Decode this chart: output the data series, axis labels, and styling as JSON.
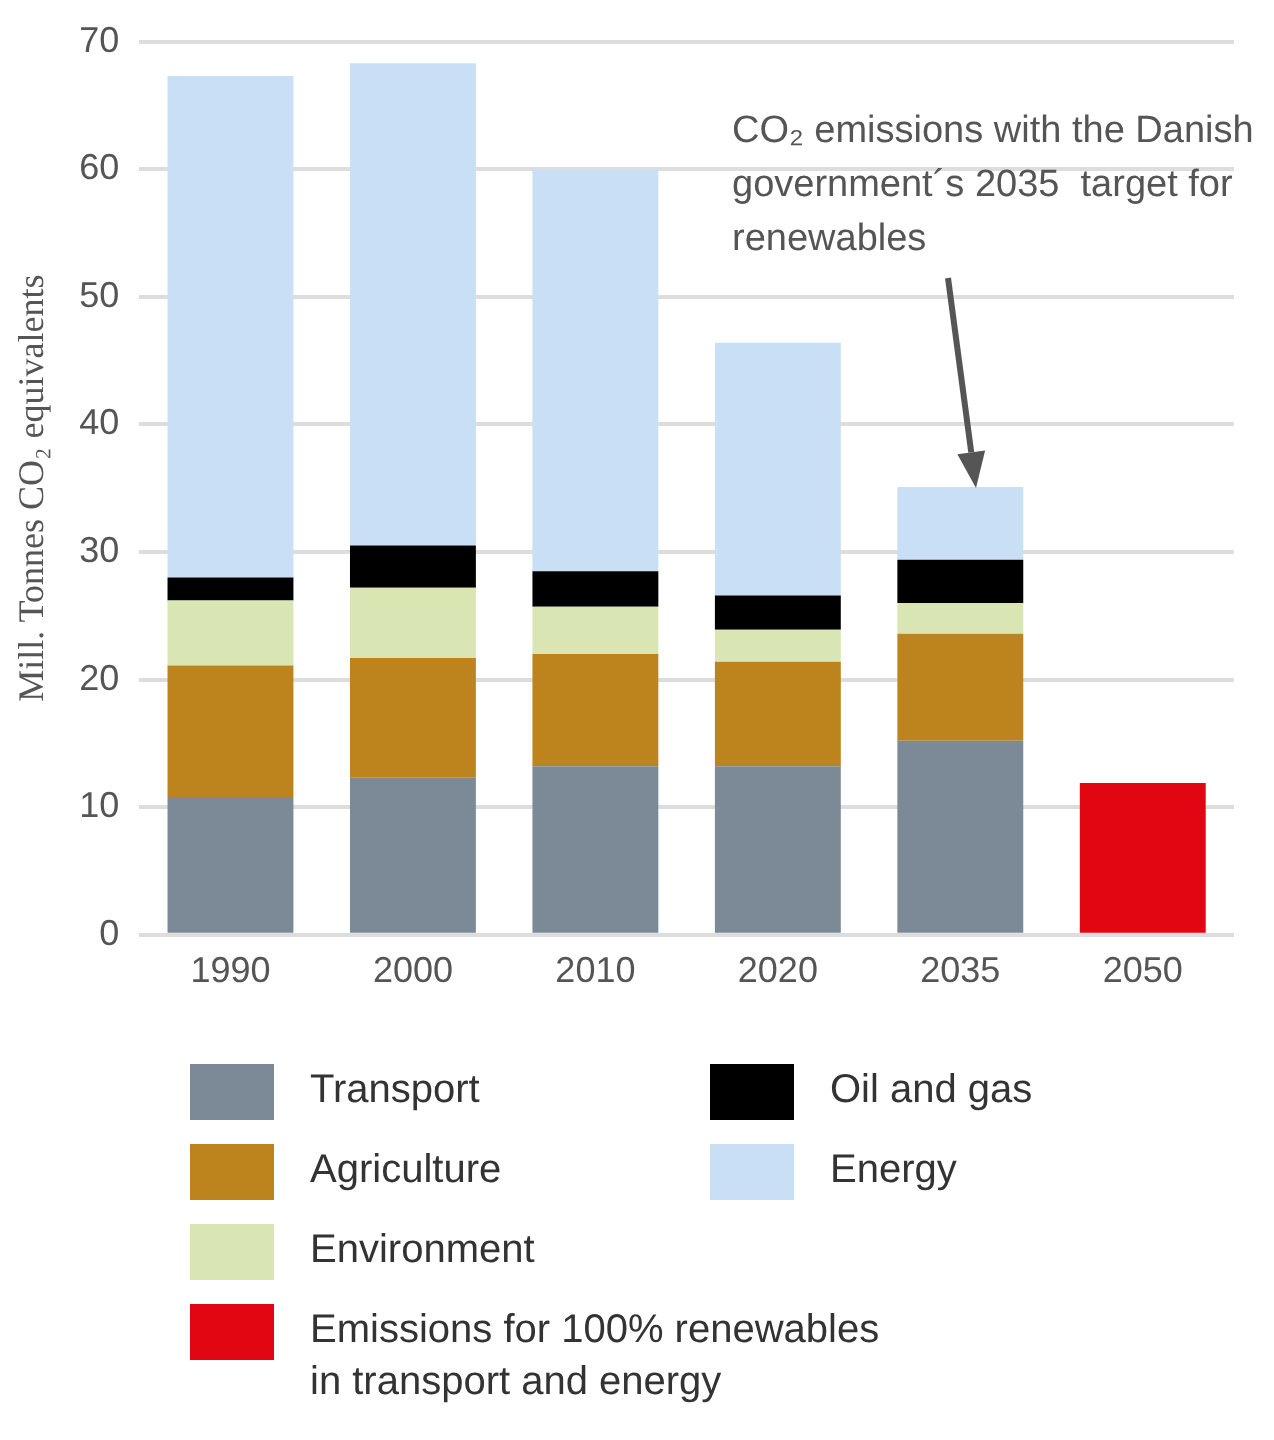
{
  "chart_data": {
    "type": "bar",
    "stacked": true,
    "ylabel": "Mill. Tonnes CO₂ equivalents",
    "categories": [
      "1990",
      "2000",
      "2010",
      "2020",
      "2035",
      "2050"
    ],
    "ylim": [
      0,
      70
    ],
    "yticks": [
      0,
      10,
      20,
      30,
      40,
      50,
      60,
      70
    ],
    "grid": "y",
    "legend": "bottom",
    "series": [
      {
        "name": "Transport",
        "color": "#7b8a96",
        "values": [
          10.8,
          12.3,
          13.2,
          13.2,
          15.2,
          null
        ]
      },
      {
        "name": "Agriculture",
        "color": "#bd841d",
        "values": [
          10.3,
          9.4,
          8.8,
          8.2,
          8.4,
          null
        ]
      },
      {
        "name": "Environment",
        "color": "#d9e6b4",
        "values": [
          5.1,
          5.5,
          3.7,
          2.5,
          2.4,
          null
        ]
      },
      {
        "name": "Oil and gas",
        "color": "#000000",
        "values": [
          1.8,
          3.3,
          2.8,
          2.7,
          3.4,
          null
        ]
      },
      {
        "name": "Energy",
        "color": "#c8dff5",
        "values": [
          39.3,
          37.8,
          31.5,
          19.8,
          5.7,
          null
        ]
      },
      {
        "name": "Emissions for 100% renewables in transport and energy",
        "color": "#e20613",
        "values": [
          null,
          null,
          null,
          null,
          null,
          11.9
        ]
      }
    ],
    "annotations": [
      "CO₂ emissions with the Danish government´s 2035  target for renewables"
    ]
  }
}
